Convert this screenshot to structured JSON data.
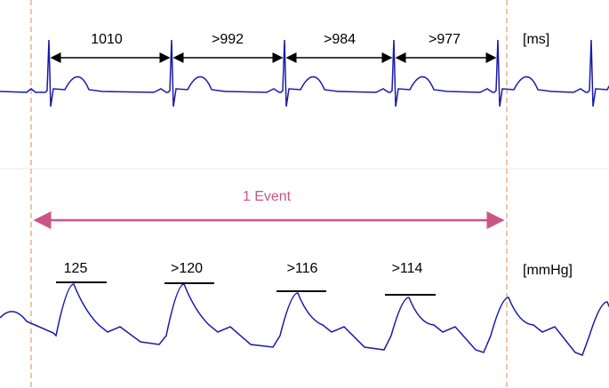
{
  "ecg": {
    "intervals": [
      "1010",
      ">992",
      ">984",
      ">977"
    ],
    "unit": "[ms]"
  },
  "event": {
    "label": "1 Event"
  },
  "pressure": {
    "peaks": [
      "125",
      ">120",
      ">116",
      ">114"
    ],
    "unit": "[mmHg]"
  }
}
